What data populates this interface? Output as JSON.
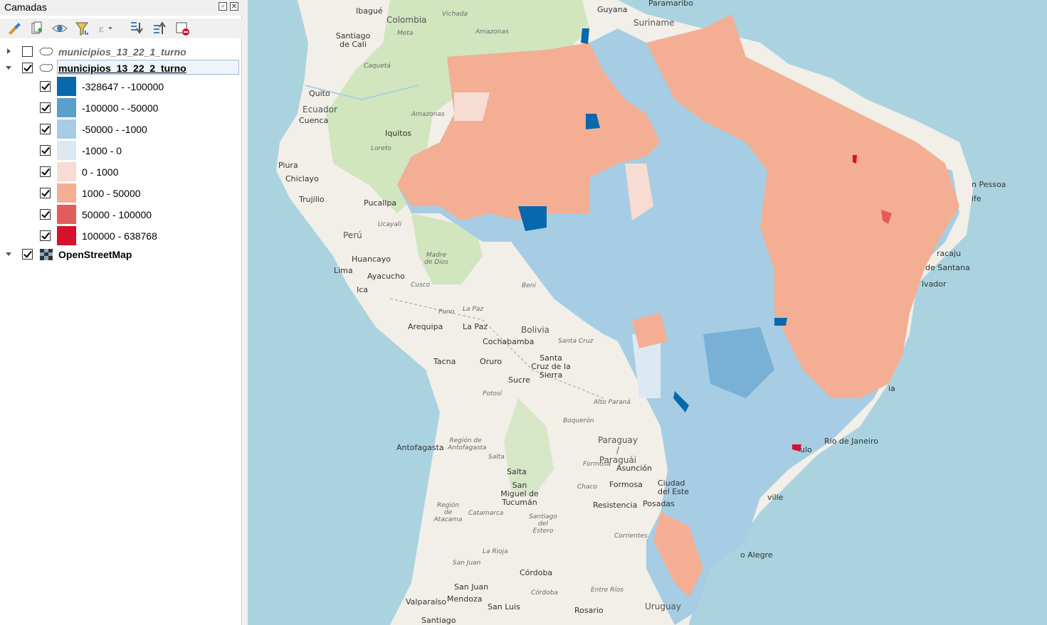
{
  "panel": {
    "title": "Camadas",
    "toolbar": [
      {
        "icon": "style-manager-icon"
      },
      {
        "icon": "add-group-icon"
      },
      {
        "icon": "manage-visibility-icon"
      },
      {
        "icon": "filter-legend-icon"
      },
      {
        "icon": "filter-expression-icon"
      },
      {
        "icon": "expand-all-icon"
      },
      {
        "icon": "collapse-all-icon"
      },
      {
        "icon": "remove-layer-icon"
      }
    ],
    "layers": [
      {
        "name": "municipios_13_22_1_turno",
        "checked": false,
        "expanded": false
      },
      {
        "name": "municipios_13_22_2_turno",
        "checked": true,
        "expanded": true
      },
      {
        "name": "OpenStreetMap",
        "checked": true,
        "expanded": true
      }
    ],
    "classes": [
      {
        "label": "-328647 - -100000",
        "color": "#0868ac"
      },
      {
        "label": "-100000 - -50000",
        "color": "#5a9fcc"
      },
      {
        "label": "-50000 - -1000",
        "color": "#a6cde3"
      },
      {
        "label": "-1000 - 0",
        "color": "#dce9f2"
      },
      {
        "label": "0 - 1000",
        "color": "#f7dcd3"
      },
      {
        "label": "1000 - 50000",
        "color": "#f4ae93"
      },
      {
        "label": "50000 - 100000",
        "color": "#e25c5c"
      },
      {
        "label": "100000 - 638768",
        "color": "#d7102c"
      }
    ]
  },
  "map": {
    "labels": {
      "ibague": "Ibagué",
      "colombia": "Colombia",
      "vichada": "Vichada",
      "guyana": "Guyana",
      "paramaribo": "Paramaribo",
      "suriname": "Suriname",
      "santiago_cali": "Santiago de Cali",
      "meta": "Meta",
      "amazonas_co": "Amazonas",
      "caqueta": "Caquetá",
      "quito": "Quito",
      "ecuador": "Ecuador",
      "cuenca": "Cuenca",
      "amazonas_pe": "Amazonas",
      "iquitos": "Iquitos",
      "loreto": "Loreto",
      "piura": "Piura",
      "chiclayo": "Chiclayo",
      "trujillo": "Trujillo",
      "pucallpa": "Pucallpa",
      "ucayali": "Ucayali",
      "peru": "Perú",
      "huancayo": "Huancayo",
      "ayacucho": "Ayacucho",
      "lima": "Lima",
      "madre_dios": "Madre de Dios",
      "ica": "Ica",
      "cusco": "Cusco",
      "beni": "Beni",
      "puno": "Puno",
      "la_paz_dep": "La Paz",
      "arequipa": "Arequipa",
      "la_paz": "La Paz",
      "bolivia": "Bolivia",
      "santa_cruz_dep": "Santa Cruz",
      "cochabamba": "Cochabamba",
      "santa_cruz": "Santa Cruz de la Sierra",
      "tacna": "Tacna",
      "oruro": "Oruro",
      "sucre": "Sucre",
      "potosi": "Potosí",
      "alto_parana": "Alto Paraná",
      "boqueron": "Boquerón",
      "antofagasta": "Antofagasta",
      "region_antofagasta": "Región de Antofagasta",
      "paraguay": "Paraguay / Paraguái",
      "salta_dep": "Salta",
      "salta": "Salta",
      "formosa_dep": "Formosa",
      "asuncion": "Asunción",
      "formosa": "Formosa",
      "ciudad_este": "Ciudad del Este",
      "chaco": "Chaco",
      "san_miguel": "San Miguel de Tucumán",
      "resistencia": "Resistencia",
      "posadas": "Posadas",
      "region_atacama": "Región de Atacama",
      "catamarca": "Catamarca",
      "santiago_estero": "Santiago del Estero",
      "corrientes": "Corrientes",
      "la_rioja": "La Rioja",
      "san_juan_dep": "San Juan",
      "cordoba": "Córdoba",
      "san_juan": "San Juan",
      "cordoba_dep": "Córdoba",
      "entre_rios": "Entre Ríos",
      "mendoza": "Mendoza",
      "valparaiso": "Valparaíso",
      "santiago": "Santiago",
      "san_luis": "San Luis",
      "rosario": "Rosario",
      "uruguay": "Uruguay",
      "rio": "Rio de Janeiro",
      "sao_paulo": "ulo",
      "porto_alegre": "o Alegre",
      "salvador": "lvador",
      "santana": "de Santana",
      "aracaju": "racaju",
      "recife": "ife",
      "joao_pessoa": "n Pessoa",
      "ville": "ville",
      "bahia": "ia"
    }
  }
}
